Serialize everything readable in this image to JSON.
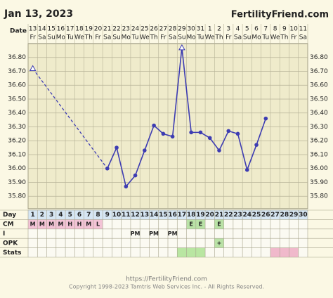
{
  "chart_data": {
    "type": "line",
    "title": "Jan 13, 2023",
    "brand": "FertilityFriend.com",
    "date_label": "Date",
    "dates": [
      13,
      14,
      15,
      16,
      17,
      18,
      19,
      20,
      21,
      22,
      23,
      24,
      25,
      26,
      27,
      28,
      29,
      30,
      31,
      1,
      2,
      3,
      4,
      5,
      6,
      7,
      8,
      9,
      10,
      11
    ],
    "weekdays": [
      "Fr",
      "Sa",
      "Su",
      "Mo",
      "Tu",
      "We",
      "Th",
      "Fr",
      "Sa",
      "Su",
      "Mo",
      "Tu",
      "We",
      "Th",
      "Fr",
      "Sa",
      "Su",
      "Mo",
      "Tu",
      "We",
      "Th",
      "Fr",
      "Sa",
      "Su",
      "Mo",
      "Tu",
      "We",
      "Th",
      "Fr",
      "Sa"
    ],
    "values": [
      36.72,
      null,
      null,
      null,
      null,
      null,
      null,
      null,
      36.0,
      36.15,
      35.87,
      35.95,
      36.13,
      36.31,
      36.25,
      36.23,
      36.87,
      36.26,
      36.26,
      36.22,
      36.13,
      36.27,
      36.25,
      35.99,
      36.17,
      36.36,
      null,
      null,
      null,
      null
    ],
    "excluded": [
      1,
      17
    ],
    "color": "#3d3cb2",
    "ylim": [
      35.71,
      36.9
    ],
    "yticks": [
      {
        "value": 35.8,
        "label": "35.80"
      },
      {
        "value": 35.9,
        "label": "35.90"
      },
      {
        "value": 36.0,
        "label": "36.00"
      },
      {
        "value": 36.1,
        "label": "36.10"
      },
      {
        "value": 36.2,
        "label": "36.20"
      },
      {
        "value": 36.3,
        "label": "36.30"
      },
      {
        "value": 36.4,
        "label": "36.40"
      },
      {
        "value": 36.5,
        "label": "36.50"
      },
      {
        "value": 36.6,
        "label": "36.60"
      },
      {
        "value": 36.7,
        "label": "36.70"
      },
      {
        "value": 36.8,
        "label": "36.80"
      }
    ],
    "day_label": "Day",
    "days": [
      1,
      2,
      3,
      4,
      5,
      6,
      7,
      8,
      9,
      10,
      11,
      12,
      13,
      14,
      15,
      16,
      17,
      18,
      19,
      20,
      21,
      22,
      23,
      24,
      25,
      26,
      27,
      28,
      29,
      30
    ],
    "rows": [
      {
        "label": "CM",
        "cells": [
          "M",
          "M",
          "M",
          "M",
          "H",
          "H",
          "M",
          "L",
          null,
          null,
          null,
          null,
          null,
          null,
          null,
          null,
          null,
          "E",
          "E",
          null,
          "E",
          null,
          null,
          null,
          null,
          null,
          null,
          null,
          null,
          null
        ],
        "colors": [
          "#f3c3d6",
          "#f3c3d6",
          "#f3c3d6",
          "#f3c3d6",
          "#f3c3d6",
          "#f3c3d6",
          "#f3c3d6",
          "#f3c3d6",
          null,
          null,
          null,
          null,
          null,
          null,
          null,
          null,
          null,
          "#b9e2a6",
          "#b9e2a6",
          null,
          "#b9e2a6",
          null,
          null,
          null,
          null,
          null,
          null,
          null,
          null,
          null
        ]
      },
      {
        "label": "I",
        "cells": [
          null,
          null,
          null,
          null,
          null,
          null,
          null,
          null,
          null,
          null,
          null,
          "PM",
          null,
          "PM",
          null,
          "PM",
          null,
          null,
          null,
          null,
          null,
          null,
          null,
          null,
          null,
          null,
          null,
          null,
          null,
          null
        ],
        "colors": [
          null,
          null,
          null,
          null,
          null,
          null,
          null,
          null,
          null,
          null,
          null,
          null,
          null,
          null,
          null,
          null,
          null,
          null,
          null,
          null,
          null,
          null,
          null,
          null,
          null,
          null,
          null,
          null,
          null,
          null
        ]
      },
      {
        "label": "OPK",
        "cells": [
          null,
          null,
          null,
          null,
          null,
          null,
          null,
          null,
          null,
          null,
          null,
          null,
          null,
          null,
          null,
          null,
          null,
          null,
          null,
          null,
          "+",
          null,
          null,
          null,
          null,
          null,
          null,
          null,
          null,
          null
        ],
        "colors": [
          null,
          null,
          null,
          null,
          null,
          null,
          null,
          null,
          null,
          null,
          null,
          null,
          null,
          null,
          null,
          null,
          null,
          null,
          null,
          null,
          "#b9e2a6",
          null,
          null,
          null,
          null,
          null,
          null,
          null,
          null,
          null
        ]
      },
      {
        "label": "Stats",
        "cells": [
          null,
          null,
          null,
          null,
          null,
          null,
          null,
          null,
          null,
          null,
          null,
          null,
          null,
          null,
          null,
          null,
          null,
          null,
          null,
          null,
          null,
          null,
          null,
          null,
          null,
          null,
          null,
          null,
          null,
          null
        ],
        "colors": [
          null,
          null,
          null,
          null,
          null,
          null,
          null,
          null,
          null,
          null,
          null,
          null,
          null,
          null,
          null,
          null,
          "#b9e6a2",
          "#b9e6a2",
          "#b9e6a2",
          null,
          null,
          null,
          null,
          null,
          null,
          null,
          "#f0b9cb",
          "#f0b9cb",
          "#f0b9cb",
          null
        ]
      }
    ],
    "footer_url": "https://FertilityFriend.com",
    "copyright": "Copyright 1998-2023 Tamtris Web Services Inc. - All Rights Reserved."
  }
}
